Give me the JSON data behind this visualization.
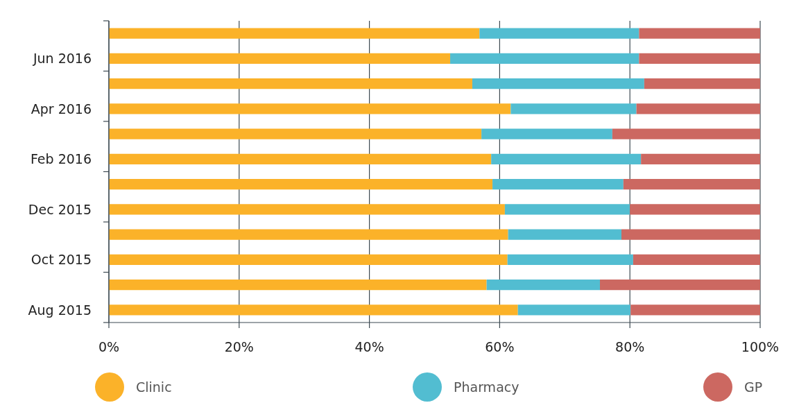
{
  "chart_data": {
    "type": "bar",
    "orientation": "horizontal",
    "stacked": true,
    "categories": [
      null,
      "Jun 2016",
      null,
      "Apr 2016",
      null,
      "Feb 2016",
      null,
      "Dec 2015",
      null,
      "Oct 2015",
      null,
      "Aug 2015"
    ],
    "series": [
      {
        "name": "Clinic",
        "color": "#fbb229",
        "values": [
          56.9,
          52.4,
          55.8,
          61.7,
          57.2,
          58.7,
          58.9,
          60.8,
          61.3,
          61.2,
          58.0,
          62.8
        ]
      },
      {
        "name": "Pharmacy",
        "color": "#52bdd1",
        "values": [
          24.5,
          29.0,
          26.4,
          19.3,
          20.1,
          23.0,
          20.1,
          19.2,
          17.4,
          19.3,
          17.4,
          17.3
        ]
      },
      {
        "name": "GP",
        "color": "#cc6861",
        "values": [
          18.6,
          18.6,
          17.8,
          19.0,
          22.7,
          18.3,
          21.0,
          20.0,
          21.3,
          19.5,
          24.6,
          19.9
        ]
      }
    ],
    "xlim": [
      0,
      100
    ],
    "xticks": [
      {
        "value": 0,
        "label": "0%"
      },
      {
        "value": 20,
        "label": "20%"
      },
      {
        "value": 40,
        "label": "40%"
      },
      {
        "value": 60,
        "label": "60%"
      },
      {
        "value": 80,
        "label": "80%"
      },
      {
        "value": 100,
        "label": "100%"
      }
    ],
    "grid": "x",
    "legend": "bottom"
  }
}
